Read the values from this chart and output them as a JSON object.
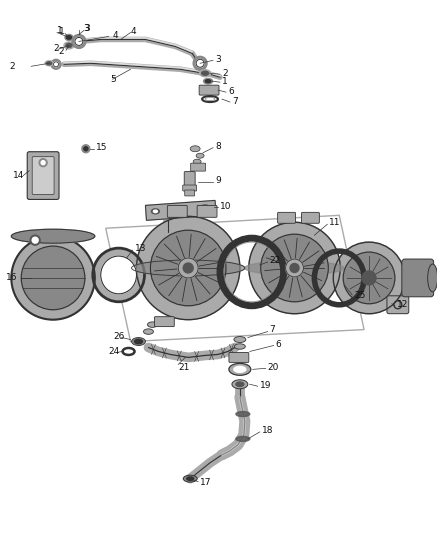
{
  "bg_color": "#ffffff",
  "line_color": "#222222",
  "label_color": "#111111",
  "label_fontsize": 6.5,
  "fig_width": 4.38,
  "fig_height": 5.33,
  "dpi": 100,
  "gray1": "#cccccc",
  "gray2": "#aaaaaa",
  "gray3": "#888888",
  "gray4": "#555555",
  "gray5": "#333333",
  "white": "#ffffff"
}
